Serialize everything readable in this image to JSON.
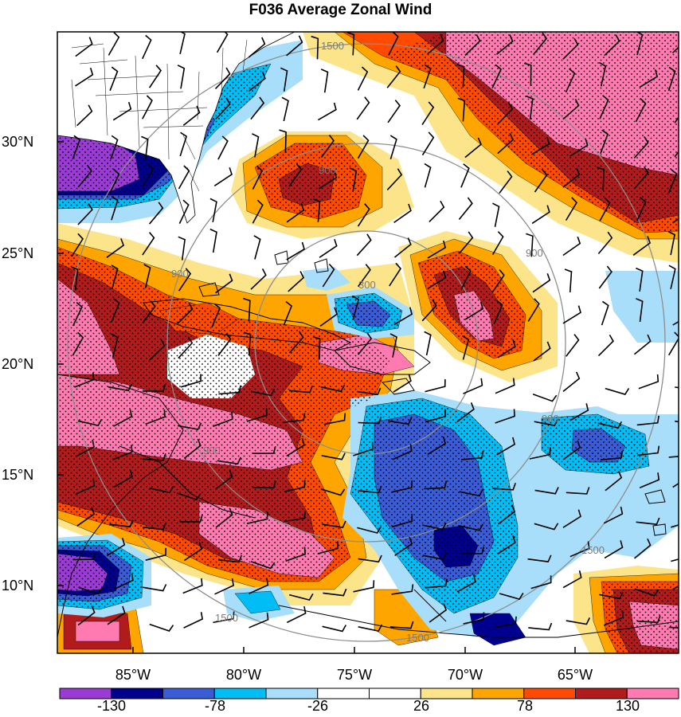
{
  "title": "F036 Average Zonal Wind",
  "latitude_labels": [
    "30°N",
    "25°N",
    "20°N",
    "15°N",
    "10°N"
  ],
  "longitude_labels": [
    "85°W",
    "80°W",
    "75°W",
    "70°W",
    "65°W"
  ],
  "range_ring_labels": [
    "300",
    "900",
    "1500"
  ],
  "colorbar": {
    "labels": [
      "-130",
      "-78",
      "-26",
      "26",
      "78",
      "130"
    ],
    "colors": [
      "#9b3bd6",
      "#00008f",
      "#3a5cd6",
      "#00bdf5",
      "#a8defa",
      "#ffffff",
      "#ffffff",
      "#fbe48a",
      "#ffa500",
      "#ff4a00",
      "#b21b1b",
      "#ff7ab0"
    ]
  },
  "palette": {
    "purple": "#9b3bd6",
    "navy": "#00008f",
    "blue": "#3a5cd6",
    "cyan": "#00bdf5",
    "lightblue": "#a8defa",
    "yellow": "#fbe48a",
    "orange": "#ffa500",
    "redorange": "#ff4a00",
    "darkred": "#b21b1b",
    "pink": "#ff7ab0"
  }
}
